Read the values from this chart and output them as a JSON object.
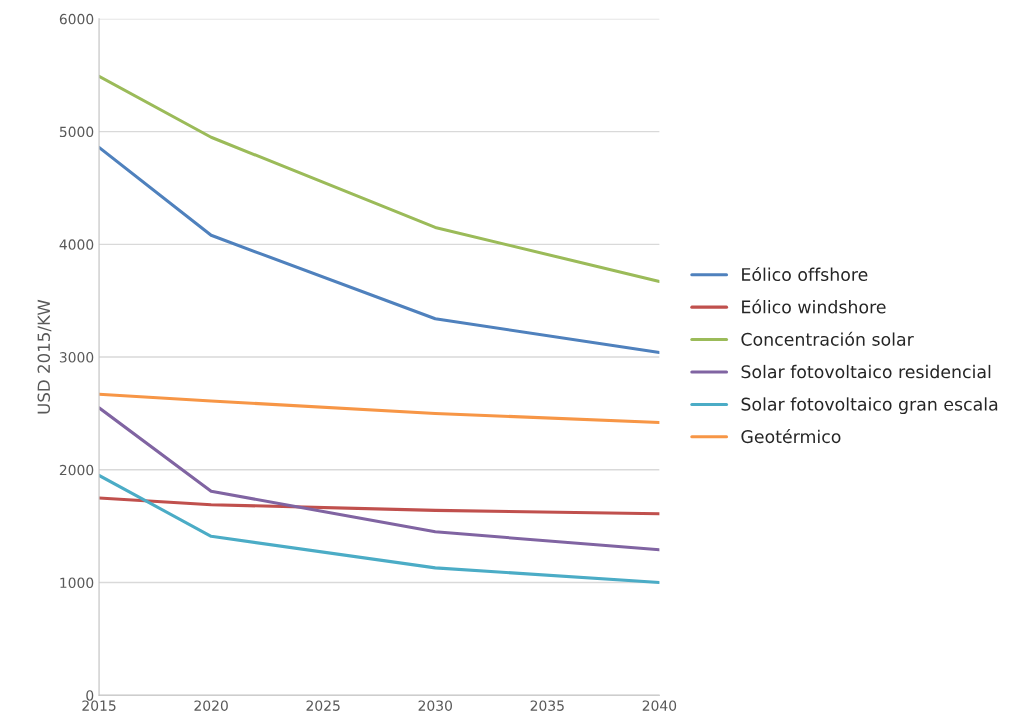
{
  "chart_data": {
    "type": "line",
    "ylabel": "USD 2015/KW",
    "x": [
      2015,
      2020,
      2030,
      2040
    ],
    "series": [
      {
        "name": "Eólico offshore",
        "color": "#4f81bd",
        "values": [
          4860,
          4080,
          3340,
          3040
        ]
      },
      {
        "name": "Eólico windshore",
        "color": "#c0504d",
        "values": [
          1750,
          1690,
          1640,
          1610
        ]
      },
      {
        "name": "Concentración solar",
        "color": "#9bbb59",
        "values": [
          5490,
          4950,
          4150,
          3670
        ]
      },
      {
        "name": "Solar fotovoltaico residencial",
        "color": "#8064a2",
        "values": [
          2550,
          1810,
          1450,
          1290
        ]
      },
      {
        "name": "Solar fotovoltaico gran escala",
        "color": "#4bacc6",
        "values": [
          1950,
          1410,
          1130,
          1000
        ]
      },
      {
        "name": "Geotérmico",
        "color": "#f79646",
        "values": [
          2670,
          2610,
          2500,
          2420
        ]
      }
    ],
    "xlim": [
      2015,
      2040
    ],
    "xticks": [
      2015,
      2020,
      2025,
      2030,
      2035,
      2040
    ],
    "ylim": [
      0,
      6000
    ],
    "yticks": [
      0,
      1000,
      2000,
      3000,
      4000,
      5000,
      6000
    ],
    "grid": "y",
    "legend": "right",
    "marker": "none",
    "line_style": "solid"
  }
}
